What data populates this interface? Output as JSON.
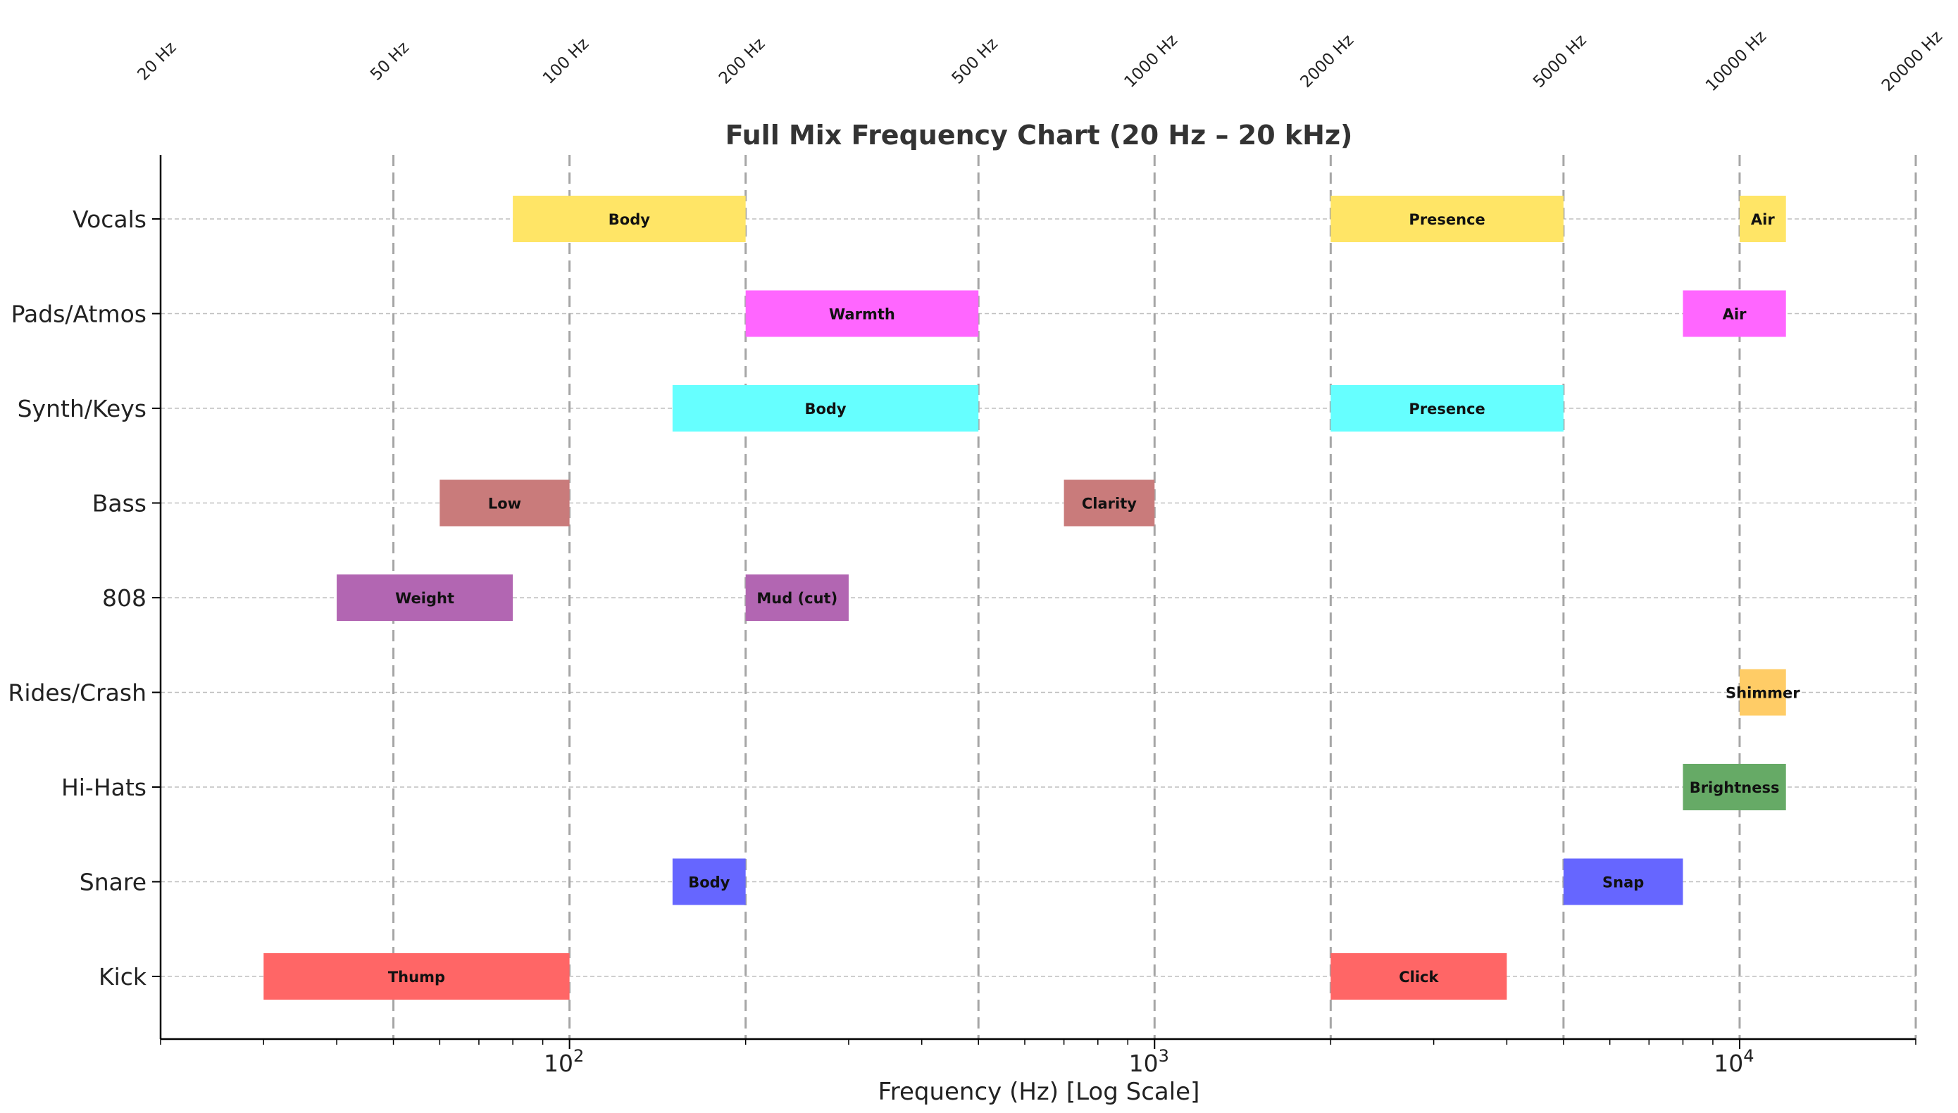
{
  "chart_data": {
    "type": "bar",
    "orientation": "horizontal-range",
    "title": "Full Mix Frequency Chart (20 Hz – 20 kHz)",
    "xlabel": "Frequency (Hz) [Log Scale]",
    "ylabel": "",
    "x_scale": "log",
    "xlim": [
      20,
      20000
    ],
    "x_major_ticks": [
      {
        "value": 100,
        "base": "10",
        "exp": "2"
      },
      {
        "value": 1000,
        "base": "10",
        "exp": "3"
      },
      {
        "value": 10000,
        "base": "10",
        "exp": "4"
      }
    ],
    "reference_lines": [
      {
        "value": 50,
        "label": "50 Hz"
      },
      {
        "value": 100,
        "label": "100 Hz"
      },
      {
        "value": 200,
        "label": "200 Hz"
      },
      {
        "value": 500,
        "label": "500 Hz"
      },
      {
        "value": 1000,
        "label": "1000 Hz"
      },
      {
        "value": 2000,
        "label": "2000 Hz"
      },
      {
        "value": 5000,
        "label": "5000 Hz"
      },
      {
        "value": 10000,
        "label": "10000 Hz"
      },
      {
        "value": 20000,
        "label": "20000 Hz"
      }
    ],
    "extra_top_labels": [
      {
        "value": 20,
        "label": "20 Hz"
      }
    ],
    "categories": [
      "Kick",
      "Snare",
      "Hi-Hats",
      "Rides/Crash",
      "808",
      "Bass",
      "Synth/Keys",
      "Pads/Atmos",
      "Vocals"
    ],
    "series": [
      {
        "instrument": "Kick",
        "color": "#ff6666",
        "ranges": [
          {
            "start": 30,
            "end": 100,
            "label": "Thump"
          },
          {
            "start": 2000,
            "end": 4000,
            "label": "Click"
          }
        ]
      },
      {
        "instrument": "Snare",
        "color": "#6666ff",
        "ranges": [
          {
            "start": 150,
            "end": 200,
            "label": "Body"
          },
          {
            "start": 5000,
            "end": 8000,
            "label": "Snap"
          }
        ]
      },
      {
        "instrument": "Hi-Hats",
        "color": "#66aa66",
        "ranges": [
          {
            "start": 8000,
            "end": 12000,
            "label": "Brightness"
          }
        ]
      },
      {
        "instrument": "Rides/Crash",
        "color": "#ffcc66",
        "ranges": [
          {
            "start": 10000,
            "end": 12000,
            "label": "Shimmer"
          }
        ]
      },
      {
        "instrument": "808",
        "color": "#b266b2",
        "ranges": [
          {
            "start": 40,
            "end": 80,
            "label": "Weight"
          },
          {
            "start": 200,
            "end": 300,
            "label": "Mud (cut)"
          }
        ]
      },
      {
        "instrument": "Bass",
        "color": "#c97b7b",
        "ranges": [
          {
            "start": 60,
            "end": 100,
            "label": "Low"
          },
          {
            "start": 700,
            "end": 1000,
            "label": "Clarity"
          }
        ]
      },
      {
        "instrument": "Synth/Keys",
        "color": "#66ffff",
        "ranges": [
          {
            "start": 150,
            "end": 500,
            "label": "Body"
          },
          {
            "start": 2000,
            "end": 5000,
            "label": "Presence"
          }
        ]
      },
      {
        "instrument": "Pads/Atmos",
        "color": "#ff66ff",
        "ranges": [
          {
            "start": 200,
            "end": 500,
            "label": "Warmth"
          },
          {
            "start": 8000,
            "end": 12000,
            "label": "Air"
          }
        ]
      },
      {
        "instrument": "Vocals",
        "color": "#ffe566",
        "ranges": [
          {
            "start": 80,
            "end": 200,
            "label": "Body"
          },
          {
            "start": 2000,
            "end": 5000,
            "label": "Presence"
          },
          {
            "start": 10000,
            "end": 12000,
            "label": "Air"
          }
        ]
      }
    ],
    "grid": {
      "y": true,
      "x_reference": true
    },
    "legend": "none"
  }
}
